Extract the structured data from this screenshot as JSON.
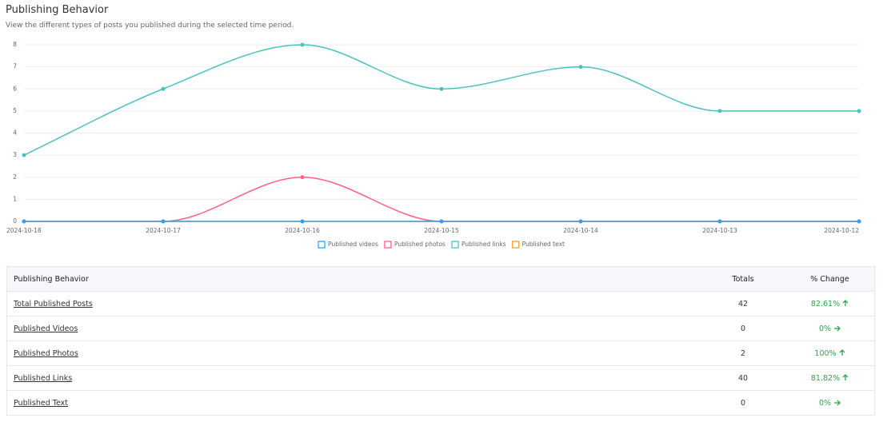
{
  "header": {
    "title": "Publishing Behavior",
    "subtitle": "View the different types of posts you published during the selected time period."
  },
  "chart_data": {
    "type": "line",
    "categories": [
      "2024-10-18",
      "2024-10-17",
      "2024-10-16",
      "2024-10-15",
      "2024-10-14",
      "2024-10-13",
      "2024-10-12"
    ],
    "series": [
      {
        "name": "Published videos",
        "color": "#36a2eb",
        "values": [
          0,
          0,
          0,
          0,
          0,
          0,
          0
        ]
      },
      {
        "name": "Published photos",
        "color": "#ff6384",
        "values": [
          0,
          0,
          2,
          0,
          0,
          0,
          0
        ]
      },
      {
        "name": "Published links",
        "color": "#4bc0c0",
        "values": [
          3,
          6,
          8,
          6,
          7,
          5,
          5
        ]
      },
      {
        "name": "Published text",
        "color": "#ff9f40",
        "values": [
          0,
          0,
          0,
          0,
          0,
          0,
          0
        ]
      }
    ],
    "ylim": [
      0,
      8
    ],
    "yticks": [
      0,
      1,
      2,
      3,
      4,
      5,
      6,
      7,
      8
    ],
    "grid": true,
    "legend": "bottom"
  },
  "table": {
    "headers": [
      "Publishing Behavior",
      "Totals",
      "% Change"
    ],
    "rows": [
      [
        "Total Published Posts",
        42,
        "82.61%"
      ],
      [
        "Published Videos",
        0,
        "0%"
      ],
      [
        "Published Photos",
        2,
        "100%"
      ],
      [
        "Published Links",
        40,
        "81.82%"
      ],
      [
        "Published Text",
        0,
        "0%"
      ]
    ]
  }
}
